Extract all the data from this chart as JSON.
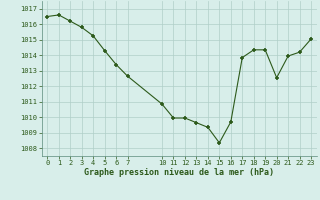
{
  "x": [
    0,
    1,
    2,
    3,
    4,
    5,
    6,
    7,
    10,
    11,
    12,
    13,
    14,
    15,
    16,
    17,
    18,
    19,
    20,
    21,
    22,
    23
  ],
  "y": [
    1016.5,
    1016.6,
    1016.2,
    1015.8,
    1015.25,
    1014.3,
    1013.4,
    1012.65,
    1010.85,
    1009.95,
    1009.95,
    1009.65,
    1009.35,
    1008.35,
    1009.7,
    1013.85,
    1014.35,
    1014.35,
    1012.55,
    1013.95,
    1014.2,
    1015.05
  ],
  "line_color": "#2d5a1b",
  "marker": "+",
  "marker_size": 3.5,
  "marker_edge_width": 1.2,
  "line_width": 0.8,
  "background_color": "#d8eeea",
  "grid_color": "#b0cfc8",
  "title": "Graphe pression niveau de la mer (hPa)",
  "xlim": [
    -0.5,
    23.5
  ],
  "ylim": [
    1007.5,
    1017.5
  ],
  "yticks": [
    1008,
    1009,
    1010,
    1011,
    1012,
    1013,
    1014,
    1015,
    1016,
    1017
  ],
  "xtick_positions": [
    0,
    1,
    2,
    3,
    4,
    5,
    6,
    7,
    10,
    11,
    12,
    13,
    14,
    15,
    16,
    17,
    18,
    19,
    20,
    21,
    22,
    23
  ],
  "title_fontsize": 6.0,
  "tick_fontsize": 5.0
}
